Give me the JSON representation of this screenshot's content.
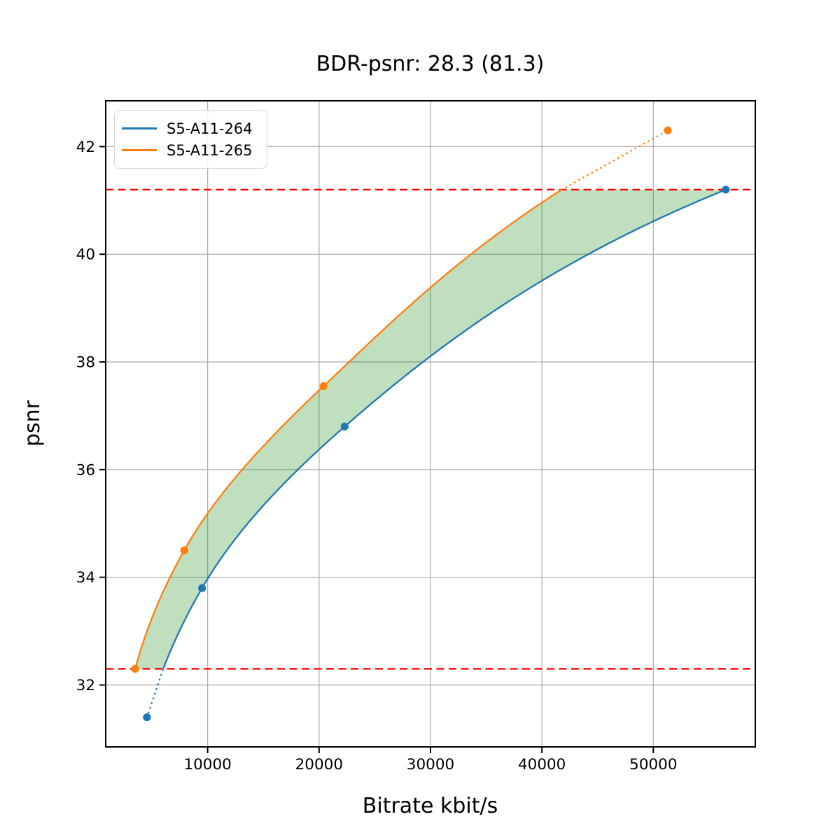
{
  "figure": {
    "background": "#ffffff"
  },
  "chart_data": {
    "type": "line",
    "title": "BDR-psnr: 28.3 (81.3)",
    "xlabel": "Bitrate kbit/s",
    "ylabel": "psnr",
    "xlim": [
      850,
      59150
    ],
    "ylim": [
      30.85,
      42.85
    ],
    "xticks": [
      10000,
      20000,
      30000,
      40000,
      50000
    ],
    "yticks": [
      32,
      34,
      36,
      38,
      40,
      42
    ],
    "grid": true,
    "grid_color": "#b0b0b0",
    "legend_position": "upper left",
    "series": [
      {
        "name": "S5-A11-264",
        "color": "#1f77b4",
        "x": [
          4550,
          9500,
          22300,
          56500
        ],
        "y": [
          31.4,
          33.8,
          36.8,
          41.2
        ]
      },
      {
        "name": "S5-A11-265",
        "color": "#ff7f0e",
        "x": [
          3500,
          7900,
          20400,
          51300
        ],
        "y": [
          32.3,
          34.5,
          37.55,
          42.3
        ]
      }
    ],
    "bd_bounds": {
      "low_psnr": 32.3,
      "high_psnr": 41.2,
      "line_color": "#ff0000",
      "line_style": "dashed"
    },
    "fill_between": {
      "color": "#008000",
      "opacity": 0.25
    }
  }
}
